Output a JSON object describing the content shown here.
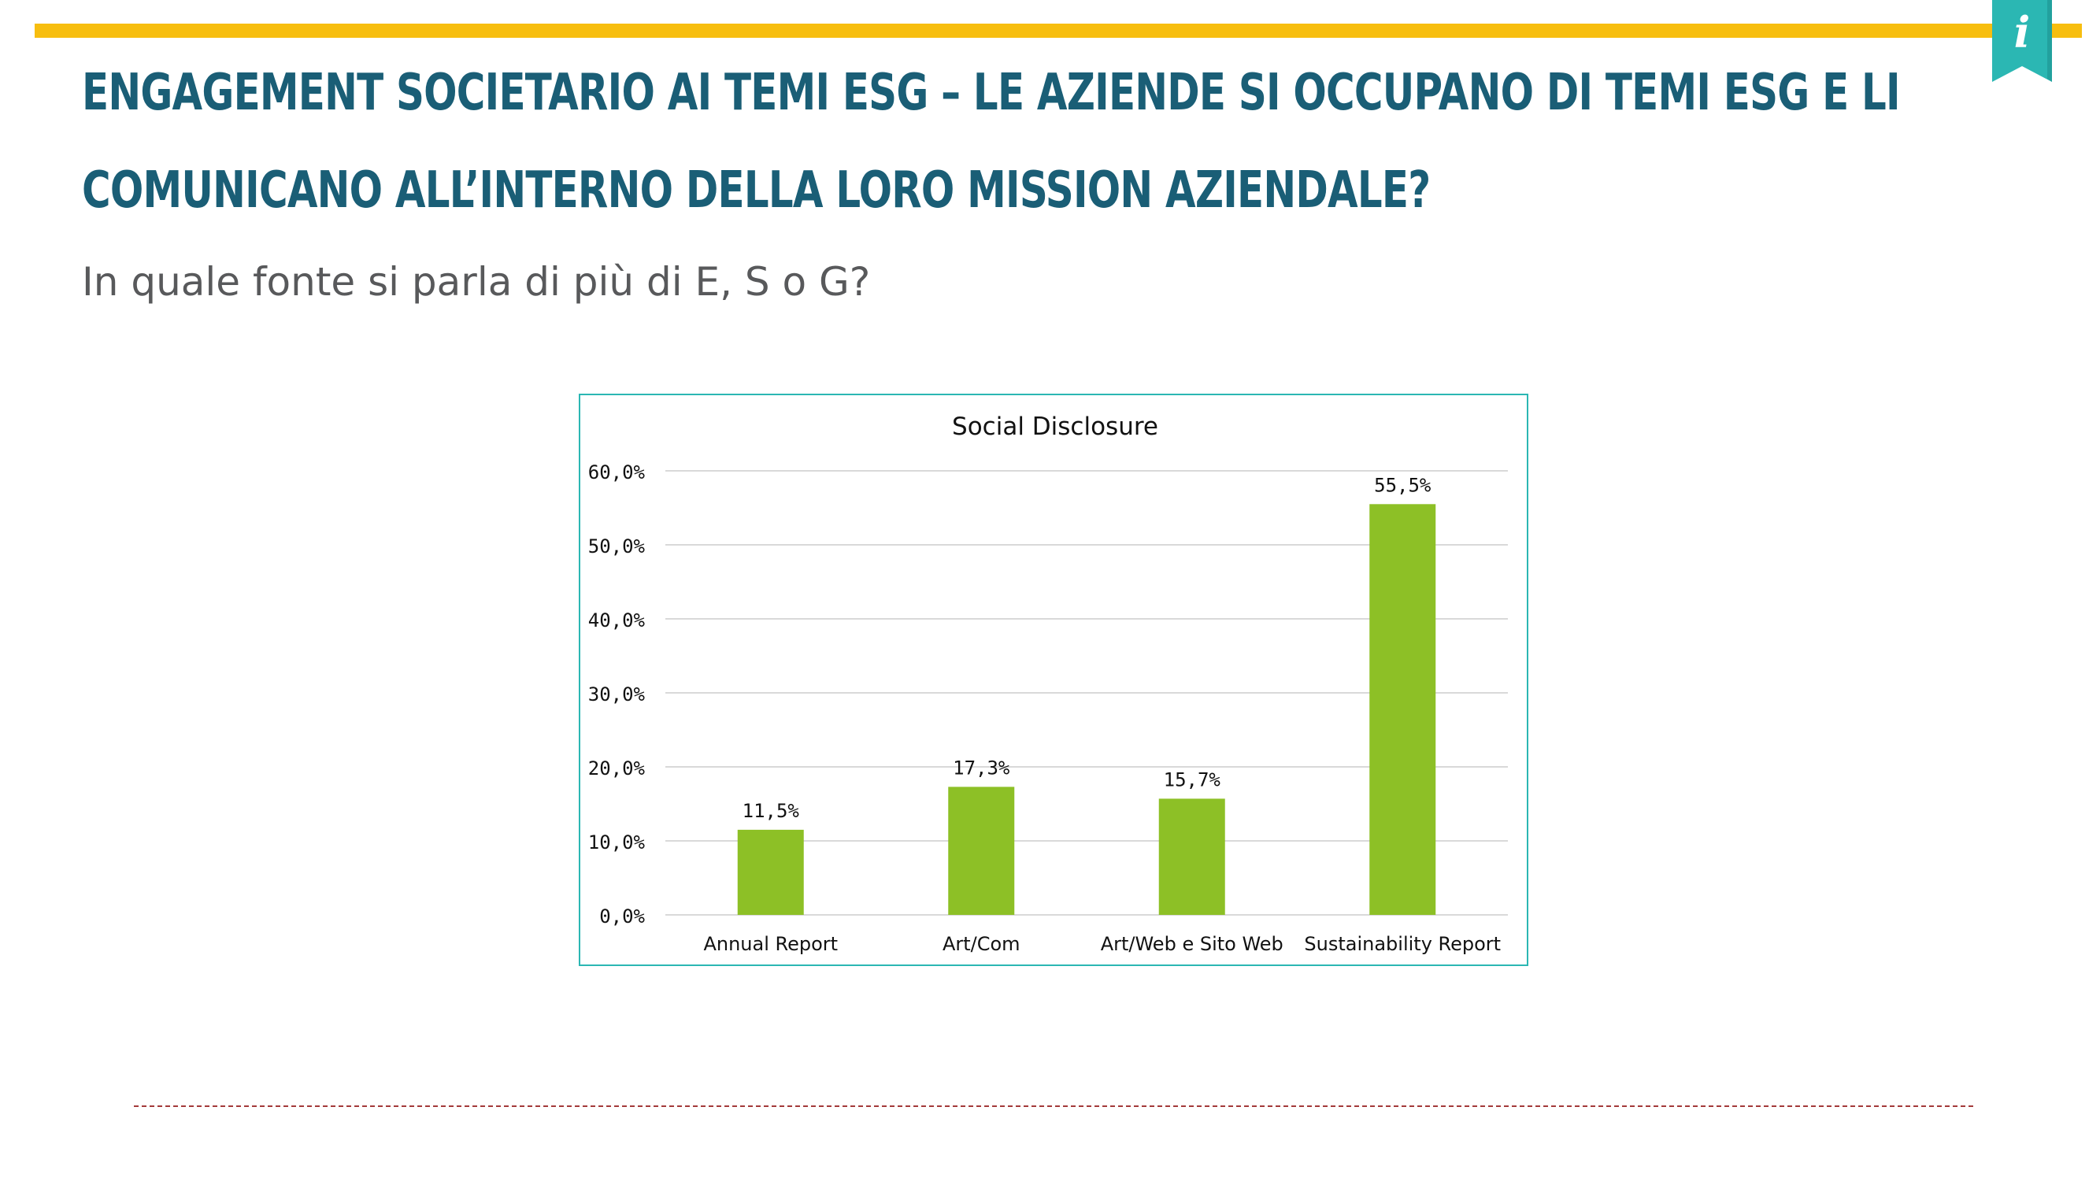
{
  "header": {
    "title_line1": "ENGAGEMENT SOCIETARIO AI TEMI ESG – LE AZIENDE SI OCCUPANO DI TEMI ESG E LI",
    "title_line2": "COMUNICANO ALL’INTERNO DELLA LORO MISSION AZIENDALE?",
    "subtitle": "In quale fonte si parla di più di E, S o G?",
    "info_glyph": "i",
    "info_icon": "info-icon"
  },
  "colors": {
    "accent_bar": "#F7BE0F",
    "title": "#1A5E76",
    "info_badge": "#2BB7B3",
    "chart_border": "#2BB7B3",
    "bar_fill": "#8DC026",
    "divider": "#A33A3A"
  },
  "chart_data": {
    "type": "bar",
    "title": "Social Disclosure",
    "categories": [
      "Annual Report",
      "Art/Com",
      "Art/Web e Sito Web",
      "Sustainability Report"
    ],
    "values": [
      11.5,
      17.3,
      15.7,
      55.5
    ],
    "value_labels": [
      "11,5%",
      "17,3%",
      "15,7%",
      "55,5%"
    ],
    "ylim": [
      0,
      60
    ],
    "y_ticks": [
      0,
      10,
      20,
      30,
      40,
      50,
      60
    ],
    "y_tick_labels": [
      "0,0%",
      "10,0%",
      "20,0%",
      "30,0%",
      "40,0%",
      "50,0%",
      "60,0%"
    ],
    "xlabel": "",
    "ylabel": "",
    "grid": true,
    "legend": "none"
  }
}
